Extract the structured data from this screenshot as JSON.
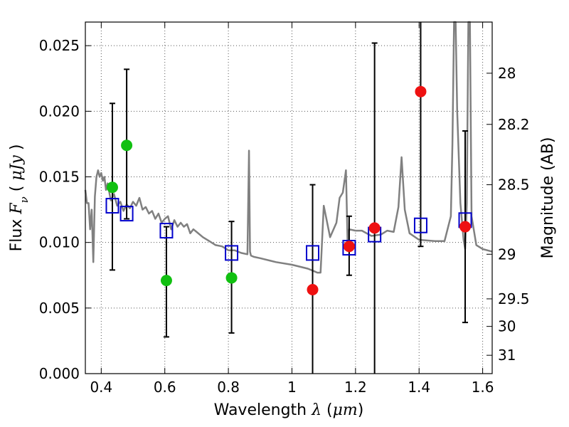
{
  "chart_data": {
    "type": "scatter",
    "xlabel": "Wavelength  λ (μm)",
    "xlabel_parts": {
      "text": "Wavelength  ",
      "symbol": "λ",
      "unit_open": " (",
      "unit": "μm",
      "unit_close": ")"
    },
    "ylabel": "Flux  Fν ( μJy )",
    "ylabel_parts": {
      "text": "Flux  ",
      "symbol": "F",
      "sub": "ν",
      "open": "  ( ",
      "unit": "μJy",
      "close": " )"
    },
    "y2label": "Magnitude (AB)",
    "xlim": [
      0.35,
      1.63
    ],
    "ylim": [
      0.0,
      0.0268
    ],
    "grid": true,
    "x_ticks": [
      0.4,
      0.6,
      0.8,
      1.0,
      1.2,
      1.4,
      1.6
    ],
    "x_tick_labels": [
      "0.4",
      "0.6",
      "0.8",
      "1",
      "1.2",
      "1.4",
      "1.6"
    ],
    "y_ticks": [
      0.0,
      0.005,
      0.01,
      0.015,
      0.02,
      0.025
    ],
    "y_tick_labels": [
      "0.000",
      "0.005",
      "0.010",
      "0.015",
      "0.020",
      "0.025"
    ],
    "y2_ticks": [
      {
        "label": "28",
        "flux": 0.0229
      },
      {
        "label": "28.2",
        "flux": 0.019
      },
      {
        "label": "28.5",
        "flux": 0.0144
      },
      {
        "label": "29",
        "flux": 0.0091
      },
      {
        "label": "29.5",
        "flux": 0.0057
      },
      {
        "label": "30",
        "flux": 0.0036
      },
      {
        "label": "31",
        "flux": 0.0014
      }
    ],
    "series": [
      {
        "name": "model-spectrum",
        "kind": "line",
        "color": "#808080",
        "x": [
          0.35,
          0.355,
          0.36,
          0.365,
          0.37,
          0.375,
          0.38,
          0.385,
          0.39,
          0.395,
          0.4,
          0.405,
          0.41,
          0.415,
          0.42,
          0.43,
          0.44,
          0.45,
          0.46,
          0.47,
          0.48,
          0.49,
          0.5,
          0.51,
          0.52,
          0.53,
          0.54,
          0.55,
          0.56,
          0.57,
          0.58,
          0.59,
          0.6,
          0.61,
          0.62,
          0.63,
          0.64,
          0.65,
          0.66,
          0.67,
          0.68,
          0.69,
          0.7,
          0.72,
          0.74,
          0.76,
          0.78,
          0.8,
          0.82,
          0.84,
          0.86,
          0.865,
          0.868,
          0.871,
          0.88,
          0.9,
          0.95,
          1.0,
          1.05,
          1.07,
          1.08,
          1.09,
          1.1,
          1.12,
          1.14,
          1.15,
          1.16,
          1.17,
          1.175,
          1.18,
          1.2,
          1.22,
          1.25,
          1.28,
          1.3,
          1.32,
          1.335,
          1.345,
          1.355,
          1.37,
          1.4,
          1.45,
          1.48,
          1.5,
          1.505,
          1.51,
          1.515,
          1.52,
          1.53,
          1.54,
          1.545,
          1.55,
          1.555,
          1.56,
          1.565,
          1.58,
          1.6,
          1.63
        ],
        "y": [
          0.014,
          0.013,
          0.013,
          0.011,
          0.0125,
          0.0085,
          0.0135,
          0.015,
          0.0155,
          0.015,
          0.0153,
          0.0147,
          0.015,
          0.014,
          0.0145,
          0.0132,
          0.0137,
          0.0128,
          0.0131,
          0.0124,
          0.0129,
          0.0126,
          0.0131,
          0.0128,
          0.0134,
          0.0125,
          0.0127,
          0.0122,
          0.0124,
          0.0118,
          0.0122,
          0.0115,
          0.0118,
          0.012,
          0.011,
          0.0117,
          0.0112,
          0.0115,
          0.0112,
          0.0114,
          0.0107,
          0.011,
          0.0108,
          0.0104,
          0.0101,
          0.0098,
          0.0097,
          0.0094,
          0.0094,
          0.0092,
          0.0091,
          0.017,
          0.0093,
          0.009,
          0.0089,
          0.0088,
          0.0085,
          0.0083,
          0.008,
          0.0078,
          0.0077,
          0.0077,
          0.0128,
          0.0104,
          0.0115,
          0.0134,
          0.0138,
          0.0155,
          0.01,
          0.011,
          0.0109,
          0.0109,
          0.0105,
          0.0106,
          0.0109,
          0.0108,
          0.0127,
          0.0165,
          0.0125,
          0.0107,
          0.0102,
          0.0101,
          0.0101,
          0.012,
          0.0175,
          0.0268,
          0.0268,
          0.02,
          0.013,
          0.0102,
          0.0095,
          0.013,
          0.0268,
          0.0268,
          0.012,
          0.0098,
          0.0095,
          0.0093
        ]
      },
      {
        "name": "synthetic-photometry",
        "kind": "scatter",
        "marker": "open-square",
        "color": "#0000cc",
        "x": [
          0.435,
          0.48,
          0.605,
          0.81,
          1.065,
          1.18,
          1.26,
          1.405,
          1.545
        ],
        "y": [
          0.0128,
          0.0122,
          0.0109,
          0.0092,
          0.0092,
          0.0096,
          0.0106,
          0.0113,
          0.0117
        ]
      },
      {
        "name": "optical-detections",
        "kind": "scatter",
        "marker": "filled-circle",
        "color": "#11c011",
        "x": [
          0.435,
          0.48,
          0.605,
          0.81
        ],
        "y": [
          0.0142,
          0.0174,
          0.0071,
          0.0073
        ],
        "err_low": [
          0.0079,
          0.0118,
          0.0028,
          0.0031
        ],
        "err_high": [
          0.0206,
          0.0232,
          0.0112,
          0.0116
        ]
      },
      {
        "name": "infrared-detections",
        "kind": "scatter",
        "marker": "filled-circle",
        "color": "#ee1111",
        "x": [
          1.065,
          1.18,
          1.26,
          1.405,
          1.545
        ],
        "y": [
          0.0064,
          0.0097,
          0.0111,
          0.0215,
          0.0112
        ],
        "err_low": [
          0.0,
          0.0075,
          0.0,
          0.0097,
          0.0039
        ],
        "err_high": [
          0.0144,
          0.012,
          0.0252,
          0.0268,
          0.0185
        ]
      }
    ]
  }
}
